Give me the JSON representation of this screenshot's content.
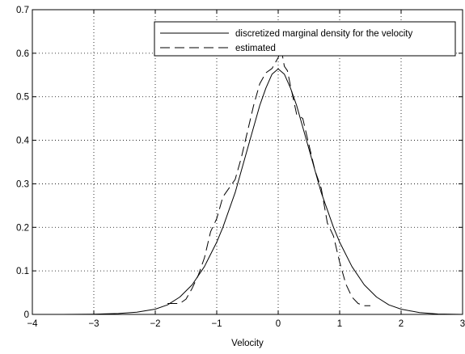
{
  "chart_data": {
    "type": "line",
    "title": "",
    "xlabel": "Velocity",
    "ylabel": "",
    "xlim": [
      -4,
      3
    ],
    "ylim": [
      0,
      0.7
    ],
    "grid": true,
    "grid_style": "dotted",
    "legend_position": "top-right",
    "x_ticks": [
      -4,
      -3,
      -2,
      -1,
      0,
      1,
      2,
      3
    ],
    "x_tick_labels": [
      "−4",
      "−3",
      "−2",
      "−1",
      "0",
      "1",
      "2",
      "3"
    ],
    "y_ticks": [
      0,
      0.1,
      0.2,
      0.3,
      0.4,
      0.5,
      0.6,
      0.7
    ],
    "y_tick_labels": [
      "0",
      "0.1",
      "0.2",
      "0.3",
      "0.4",
      "0.5",
      "0.6",
      "0.7"
    ],
    "series": [
      {
        "name": "discretized marginal density for the velocity",
        "style": "solid",
        "color": "#000000",
        "x": [
          -3.5,
          -3.0,
          -2.6,
          -2.3,
          -2.0,
          -1.8,
          -1.6,
          -1.4,
          -1.2,
          -1.0,
          -0.9,
          -0.8,
          -0.7,
          -0.6,
          -0.5,
          -0.4,
          -0.3,
          -0.2,
          -0.1,
          0.0,
          0.1,
          0.2,
          0.3,
          0.4,
          0.5,
          0.6,
          0.7,
          0.8,
          0.9,
          1.0,
          1.2,
          1.4,
          1.6,
          1.8,
          2.0,
          2.3,
          2.6,
          3.0
        ],
        "y": [
          0.0,
          0.0005,
          0.002,
          0.005,
          0.012,
          0.022,
          0.04,
          0.068,
          0.11,
          0.166,
          0.2,
          0.24,
          0.28,
          0.33,
          0.38,
          0.43,
          0.48,
          0.52,
          0.552,
          0.564,
          0.552,
          0.52,
          0.48,
          0.43,
          0.38,
          0.33,
          0.28,
          0.24,
          0.2,
          0.166,
          0.11,
          0.068,
          0.04,
          0.022,
          0.012,
          0.004,
          0.001,
          0.0
        ]
      },
      {
        "name": "estimated",
        "style": "dashed",
        "color": "#000000",
        "x": [
          -1.8,
          -1.6,
          -1.5,
          -1.4,
          -1.3,
          -1.2,
          -1.1,
          -1.0,
          -0.9,
          -0.8,
          -0.7,
          -0.6,
          -0.5,
          -0.4,
          -0.3,
          -0.2,
          -0.1,
          0.0,
          0.05,
          0.1,
          0.15,
          0.2,
          0.3,
          0.4,
          0.5,
          0.6,
          0.7,
          0.8,
          0.9,
          1.0,
          1.1,
          1.2,
          1.3,
          1.4,
          1.5
        ],
        "y": [
          0.025,
          0.025,
          0.035,
          0.06,
          0.09,
          0.13,
          0.19,
          0.22,
          0.27,
          0.29,
          0.31,
          0.36,
          0.42,
          0.48,
          0.53,
          0.555,
          0.565,
          0.59,
          0.61,
          0.57,
          0.56,
          0.525,
          0.46,
          0.45,
          0.39,
          0.33,
          0.29,
          0.21,
          0.18,
          0.12,
          0.07,
          0.04,
          0.025,
          0.02,
          0.02
        ]
      }
    ]
  }
}
